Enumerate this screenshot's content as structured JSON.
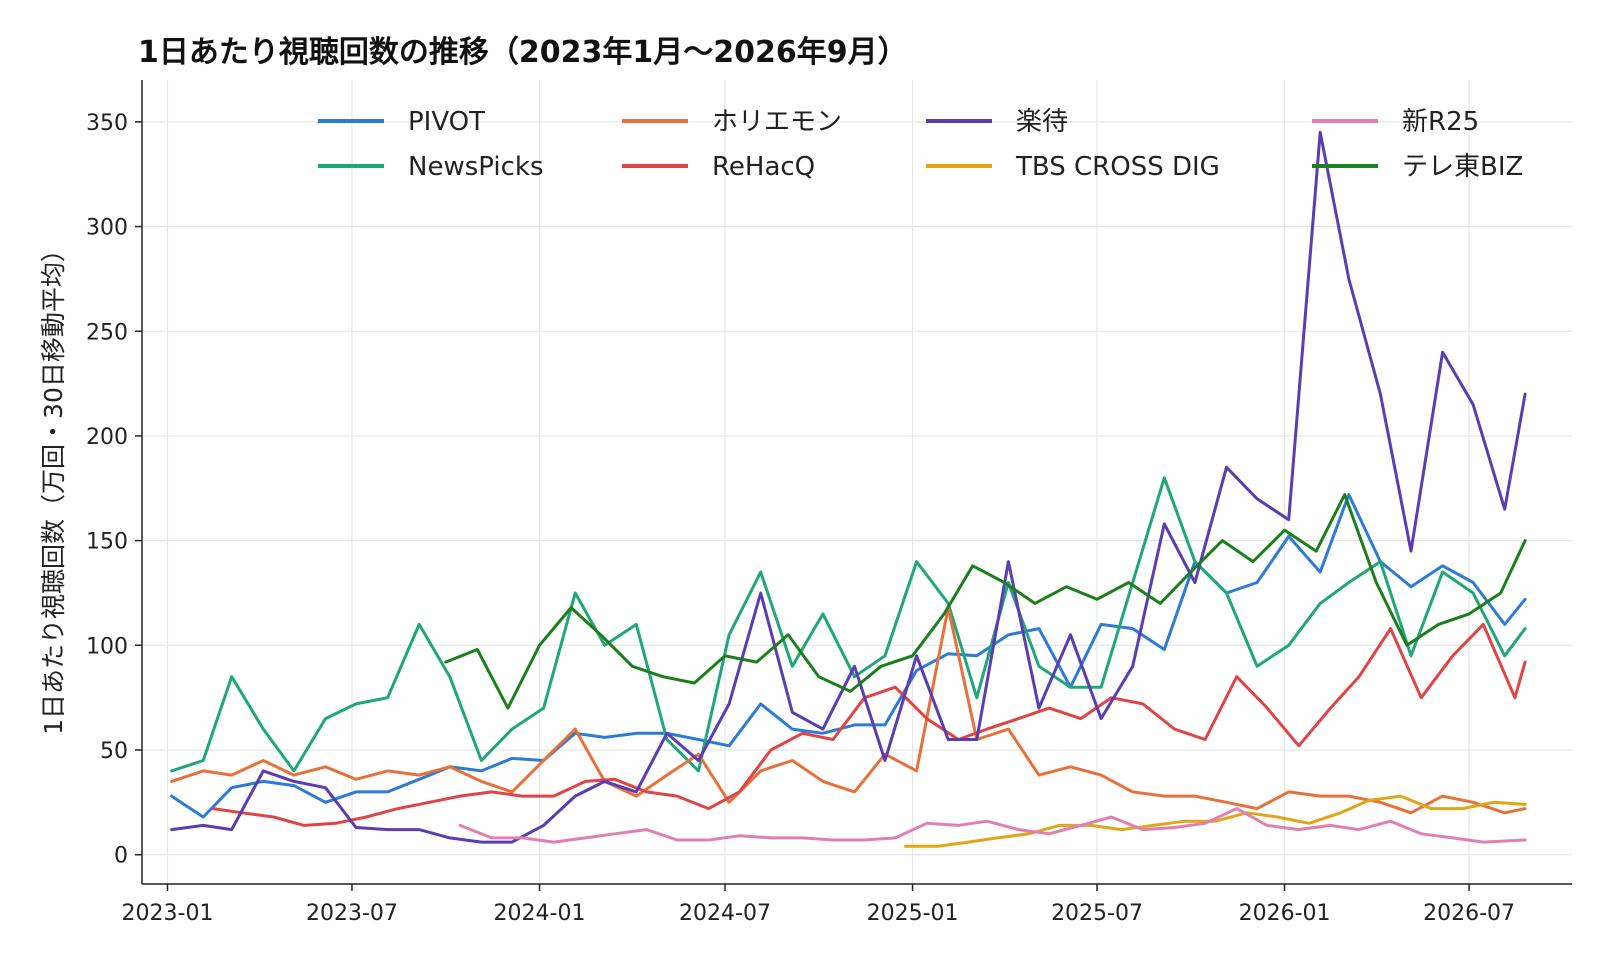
{
  "chart_data": {
    "type": "line",
    "title": "1日あたり視聴回数の推移（2023年1月〜2026年9月）",
    "xlabel": "",
    "ylabel": "1日あたり視聴回数（万回・30日移動平均）",
    "xlim": [
      "2022-12-07",
      "2026-10-10"
    ],
    "ylim": [
      -14,
      370
    ],
    "x_ticks": [
      "2023-01",
      "2023-07",
      "2024-01",
      "2024-07",
      "2025-01",
      "2025-07",
      "2026-01",
      "2026-07"
    ],
    "y_ticks": [
      0,
      50,
      100,
      150,
      200,
      250,
      300,
      350
    ],
    "grid": true,
    "legend": "top, 4 columns",
    "series": [
      {
        "name": "PIVOT",
        "color": "#2c7bd6",
        "x": [
          "2023-01-05",
          "2023-02-05",
          "2023-03-05",
          "2023-04-05",
          "2023-05-05",
          "2023-06-05",
          "2023-07-05",
          "2023-08-05",
          "2023-09-05",
          "2023-10-05",
          "2023-11-05",
          "2023-12-05",
          "2024-01-05",
          "2024-02-05",
          "2024-03-05",
          "2024-04-05",
          "2024-05-05",
          "2024-06-05",
          "2024-07-05",
          "2024-08-05",
          "2024-09-05",
          "2024-10-05",
          "2024-11-05",
          "2024-12-05",
          "2025-01-05",
          "2025-02-05",
          "2025-03-05",
          "2025-04-05",
          "2025-05-05",
          "2025-06-05",
          "2025-07-05",
          "2025-08-05",
          "2025-09-05",
          "2025-10-05",
          "2025-11-05",
          "2025-12-05",
          "2026-01-05",
          "2026-02-05",
          "2026-03-05",
          "2026-04-05",
          "2026-05-05",
          "2026-06-05",
          "2026-07-05",
          "2026-08-05",
          "2026-08-25"
        ],
        "values": [
          28,
          18,
          32,
          35,
          33,
          25,
          30,
          30,
          36,
          42,
          40,
          46,
          45,
          58,
          56,
          58,
          58,
          55,
          52,
          72,
          60,
          58,
          62,
          62,
          88,
          96,
          95,
          105,
          108,
          80,
          110,
          108,
          98,
          140,
          125,
          130,
          152,
          135,
          172,
          140,
          128,
          138,
          130,
          110,
          122
        ]
      },
      {
        "name": "NewsPicks",
        "color": "#1ea77a",
        "x": [
          "2023-01-05",
          "2023-02-05",
          "2023-03-05",
          "2023-04-05",
          "2023-05-05",
          "2023-06-05",
          "2023-07-05",
          "2023-08-05",
          "2023-09-05",
          "2023-10-05",
          "2023-11-05",
          "2023-12-05",
          "2024-01-05",
          "2024-02-05",
          "2024-03-05",
          "2024-04-05",
          "2024-05-05",
          "2024-06-05",
          "2024-07-05",
          "2024-08-05",
          "2024-09-05",
          "2024-10-05",
          "2024-11-05",
          "2024-12-05",
          "2025-01-05",
          "2025-02-05",
          "2025-03-05",
          "2025-04-05",
          "2025-05-05",
          "2025-06-05",
          "2025-07-05",
          "2025-08-05",
          "2025-09-05",
          "2025-10-05",
          "2025-11-05",
          "2025-12-05",
          "2026-01-05",
          "2026-02-05",
          "2026-03-05",
          "2026-04-05",
          "2026-05-05",
          "2026-06-05",
          "2026-07-05",
          "2026-08-05",
          "2026-08-25"
        ],
        "values": [
          40,
          45,
          85,
          60,
          40,
          65,
          72,
          75,
          110,
          85,
          45,
          60,
          70,
          125,
          100,
          110,
          55,
          40,
          105,
          135,
          90,
          115,
          85,
          95,
          140,
          120,
          75,
          130,
          90,
          80,
          80,
          130,
          180,
          140,
          125,
          90,
          100,
          120,
          130,
          140,
          95,
          135,
          125,
          95,
          108
        ]
      },
      {
        "name": "ホリエモン",
        "color": "#e8703a",
        "x": [
          "2023-01-05",
          "2023-02-05",
          "2023-03-05",
          "2023-04-05",
          "2023-05-05",
          "2023-06-05",
          "2023-07-05",
          "2023-08-05",
          "2023-09-05",
          "2023-10-05",
          "2023-11-05",
          "2023-12-05",
          "2024-01-05",
          "2024-02-05",
          "2024-03-05",
          "2024-04-05",
          "2024-05-05",
          "2024-06-05",
          "2024-07-05",
          "2024-08-05",
          "2024-09-05",
          "2024-10-05",
          "2024-11-05",
          "2024-12-05",
          "2025-01-05",
          "2025-02-05",
          "2025-03-05",
          "2025-04-05",
          "2025-05-05",
          "2025-06-05",
          "2025-07-05",
          "2025-08-05",
          "2025-09-05",
          "2025-10-05",
          "2025-11-05",
          "2025-12-05",
          "2026-01-05",
          "2026-02-05",
          "2026-03-05",
          "2026-04-05",
          "2026-05-05",
          "2026-06-05",
          "2026-07-05",
          "2026-08-05",
          "2026-08-25"
        ],
        "values": [
          35,
          40,
          38,
          45,
          38,
          42,
          36,
          40,
          38,
          42,
          35,
          30,
          45,
          60,
          35,
          28,
          38,
          48,
          25,
          40,
          45,
          35,
          30,
          48,
          40,
          118,
          55,
          60,
          38,
          42,
          38,
          30,
          28,
          28,
          25,
          22,
          30,
          28,
          28,
          25,
          20,
          28,
          25,
          20,
          22
        ]
      },
      {
        "name": "ReHacQ",
        "color": "#e04444",
        "x": [
          "2023-02-15",
          "2023-03-15",
          "2023-04-15",
          "2023-05-15",
          "2023-06-15",
          "2023-07-15",
          "2023-08-15",
          "2023-09-15",
          "2023-10-15",
          "2023-11-15",
          "2023-12-15",
          "2024-01-15",
          "2024-02-15",
          "2024-03-15",
          "2024-04-15",
          "2024-05-15",
          "2024-06-15",
          "2024-07-15",
          "2024-08-15",
          "2024-09-15",
          "2024-10-15",
          "2024-11-15",
          "2024-12-15",
          "2025-01-15",
          "2025-02-15",
          "2025-03-15",
          "2025-04-15",
          "2025-05-15",
          "2025-06-15",
          "2025-07-15",
          "2025-08-15",
          "2025-09-15",
          "2025-10-15",
          "2025-11-15",
          "2025-12-15",
          "2026-01-15",
          "2026-02-15",
          "2026-03-15",
          "2026-04-15",
          "2026-05-15",
          "2026-06-15",
          "2026-07-15",
          "2026-08-15",
          "2026-08-25"
        ],
        "values": [
          22,
          20,
          18,
          14,
          15,
          18,
          22,
          25,
          28,
          30,
          28,
          28,
          35,
          36,
          30,
          28,
          22,
          30,
          50,
          58,
          55,
          75,
          80,
          65,
          55,
          60,
          65,
          70,
          65,
          75,
          72,
          60,
          55,
          85,
          70,
          52,
          70,
          85,
          108,
          75,
          95,
          110,
          75,
          92
        ]
      },
      {
        "name": "楽待",
        "color": "#5a3db3",
        "x": [
          "2023-01-05",
          "2023-02-05",
          "2023-03-05",
          "2023-04-05",
          "2023-05-05",
          "2023-06-05",
          "2023-07-05",
          "2023-08-05",
          "2023-09-05",
          "2023-10-05",
          "2023-11-05",
          "2023-12-05",
          "2024-01-05",
          "2024-02-05",
          "2024-03-05",
          "2024-04-05",
          "2024-05-05",
          "2024-06-05",
          "2024-07-05",
          "2024-08-05",
          "2024-09-05",
          "2024-10-05",
          "2024-11-05",
          "2024-12-05",
          "2025-01-05",
          "2025-02-05",
          "2025-03-05",
          "2025-04-05",
          "2025-05-05",
          "2025-06-05",
          "2025-07-05",
          "2025-08-05",
          "2025-09-05",
          "2025-10-05",
          "2025-11-05",
          "2025-12-05",
          "2026-01-05",
          "2026-02-05",
          "2026-03-05",
          "2026-04-05",
          "2026-05-05",
          "2026-06-05",
          "2026-07-05",
          "2026-08-05",
          "2026-08-25"
        ],
        "values": [
          12,
          14,
          12,
          40,
          35,
          32,
          13,
          12,
          12,
          8,
          6,
          6,
          14,
          28,
          35,
          30,
          58,
          45,
          72,
          125,
          68,
          60,
          90,
          45,
          95,
          55,
          55,
          140,
          70,
          105,
          65,
          90,
          158,
          130,
          185,
          170,
          160,
          345,
          275,
          220,
          145,
          240,
          215,
          165,
          220
        ]
      },
      {
        "name": "TBS CROSS DIG",
        "color": "#e0a615",
        "x": [
          "2024-12-25",
          "2025-01-25",
          "2025-02-25",
          "2025-03-25",
          "2025-04-25",
          "2025-05-25",
          "2025-06-25",
          "2025-07-25",
          "2025-08-25",
          "2025-09-25",
          "2025-10-25",
          "2025-11-25",
          "2025-12-25",
          "2026-01-25",
          "2026-02-25",
          "2026-03-25",
          "2026-04-25",
          "2026-05-25",
          "2026-06-25",
          "2026-07-25",
          "2026-08-25"
        ],
        "values": [
          4,
          4,
          6,
          8,
          10,
          14,
          14,
          12,
          14,
          16,
          16,
          20,
          18,
          15,
          20,
          26,
          28,
          22,
          22,
          25,
          24
        ]
      },
      {
        "name": "新R25",
        "color": "#e07fb2",
        "x": [
          "2023-10-15",
          "2023-11-15",
          "2023-12-15",
          "2024-01-15",
          "2024-02-15",
          "2024-03-15",
          "2024-04-15",
          "2024-05-15",
          "2024-06-15",
          "2024-07-15",
          "2024-08-15",
          "2024-09-15",
          "2024-10-15",
          "2024-11-15",
          "2024-12-15",
          "2025-01-15",
          "2025-02-15",
          "2025-03-15",
          "2025-04-15",
          "2025-05-15",
          "2025-06-15",
          "2025-07-15",
          "2025-08-15",
          "2025-09-15",
          "2025-10-15",
          "2025-11-15",
          "2025-12-15",
          "2026-01-15",
          "2026-02-15",
          "2026-03-15",
          "2026-04-15",
          "2026-05-15",
          "2026-06-15",
          "2026-07-15",
          "2026-08-25"
        ],
        "values": [
          14,
          8,
          8,
          6,
          8,
          10,
          12,
          7,
          7,
          9,
          8,
          8,
          7,
          7,
          8,
          15,
          14,
          16,
          12,
          10,
          14,
          18,
          12,
          13,
          15,
          22,
          14,
          12,
          14,
          12,
          16,
          10,
          8,
          6,
          7
        ]
      },
      {
        "name": "テレ東BIZ",
        "color": "#1b7f1b",
        "x": [
          "2023-10-01",
          "2023-11-01",
          "2023-12-01",
          "2024-01-01",
          "2024-02-01",
          "2024-03-01",
          "2024-04-01",
          "2024-05-01",
          "2024-06-01",
          "2024-07-01",
          "2024-08-01",
          "2024-09-01",
          "2024-10-01",
          "2024-11-01",
          "2024-12-01",
          "2025-01-01",
          "2025-02-01",
          "2025-03-01",
          "2025-04-01",
          "2025-05-01",
          "2025-06-01",
          "2025-07-01",
          "2025-08-01",
          "2025-09-01",
          "2025-10-01",
          "2025-11-01",
          "2025-12-01",
          "2026-01-01",
          "2026-02-01",
          "2026-03-01",
          "2026-04-01",
          "2026-05-01",
          "2026-06-01",
          "2026-07-01",
          "2026-08-01",
          "2026-08-25"
        ],
        "values": [
          92,
          98,
          70,
          100,
          118,
          105,
          90,
          85,
          82,
          95,
          92,
          105,
          85,
          78,
          90,
          95,
          115,
          138,
          130,
          120,
          128,
          122,
          130,
          120,
          135,
          150,
          140,
          155,
          145,
          172,
          130,
          100,
          110,
          115,
          125,
          150
        ]
      }
    ]
  }
}
